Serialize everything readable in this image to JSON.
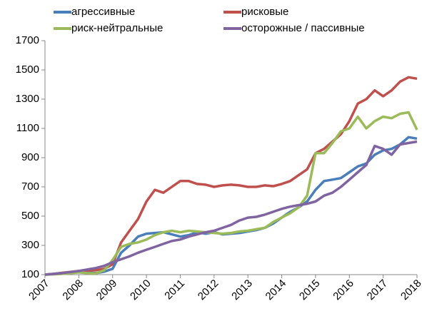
{
  "chart_data": {
    "type": "line",
    "x": [
      2007,
      2007.25,
      2007.5,
      2007.75,
      2008,
      2008.25,
      2008.5,
      2008.75,
      2009,
      2009.25,
      2009.5,
      2009.75,
      2010,
      2010.25,
      2010.5,
      2010.75,
      2011,
      2011.25,
      2011.5,
      2011.75,
      2012,
      2012.25,
      2012.5,
      2012.75,
      2013,
      2013.25,
      2013.5,
      2013.75,
      2014,
      2014.25,
      2014.5,
      2014.75,
      2015,
      2015.25,
      2015.5,
      2015.75,
      2016,
      2016.25,
      2016.5,
      2016.75,
      2017,
      2017.25,
      2017.5,
      2017.75,
      2018
    ],
    "series": [
      {
        "name": "агрессивные",
        "color": "#4a7ebb",
        "values": [
          100,
          105,
          110,
          115,
          120,
          115,
          110,
          120,
          140,
          250,
          300,
          360,
          380,
          385,
          390,
          375,
          360,
          370,
          390,
          380,
          390,
          375,
          380,
          385,
          395,
          405,
          420,
          450,
          490,
          530,
          560,
          600,
          680,
          740,
          750,
          760,
          800,
          840,
          860,
          920,
          950,
          960,
          990,
          1040,
          1030
        ]
      },
      {
        "name": "рисковые",
        "color": "#c0504d",
        "values": [
          100,
          105,
          112,
          118,
          125,
          128,
          130,
          140,
          170,
          320,
          400,
          480,
          600,
          680,
          660,
          700,
          740,
          740,
          720,
          715,
          700,
          710,
          715,
          710,
          700,
          700,
          710,
          705,
          720,
          740,
          780,
          820,
          930,
          960,
          1010,
          1060,
          1150,
          1270,
          1300,
          1360,
          1320,
          1360,
          1420,
          1450,
          1440
        ]
      },
      {
        "name": "риск-нейтральные",
        "color": "#9bbb59",
        "values": [
          100,
          102,
          105,
          110,
          115,
          110,
          108,
          130,
          200,
          290,
          310,
          320,
          340,
          370,
          390,
          400,
          390,
          400,
          395,
          390,
          385,
          380,
          385,
          395,
          400,
          410,
          420,
          460,
          490,
          520,
          560,
          640,
          930,
          930,
          1000,
          1080,
          1100,
          1180,
          1100,
          1150,
          1180,
          1170,
          1200,
          1210,
          1090
        ]
      },
      {
        "name": "осторожные / пассивные",
        "color": "#8064a2",
        "values": [
          100,
          105,
          110,
          118,
          125,
          135,
          145,
          160,
          185,
          205,
          225,
          250,
          270,
          290,
          310,
          330,
          340,
          360,
          375,
          390,
          400,
          420,
          440,
          470,
          490,
          495,
          510,
          530,
          550,
          565,
          575,
          585,
          600,
          640,
          660,
          700,
          750,
          800,
          850,
          980,
          960,
          920,
          990,
          1000,
          1010
        ]
      }
    ],
    "xlim": [
      2007,
      2018
    ],
    "xticks": [
      2007,
      2008,
      2009,
      2010,
      2011,
      2012,
      2013,
      2014,
      2015,
      2016,
      2017,
      2018
    ],
    "ylim": [
      100,
      1700
    ],
    "yticks": [
      100,
      300,
      500,
      700,
      900,
      1100,
      1300,
      1500,
      1700
    ],
    "grid": false,
    "legend": "top"
  }
}
